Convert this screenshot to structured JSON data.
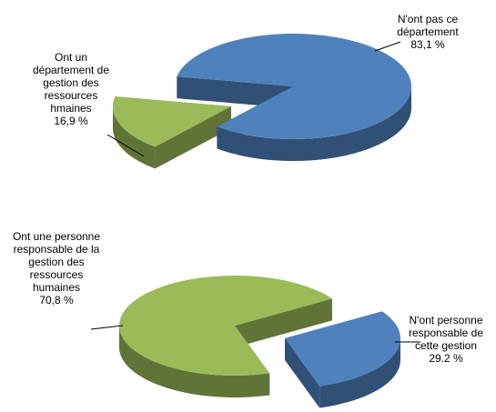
{
  "chart_data": [
    {
      "type": "pie",
      "categories": [
        "Ont un département de gestion des ressources hmaines",
        "N'ont pas ce département"
      ],
      "values": [
        16.9,
        83.1
      ],
      "value_labels": [
        "16,9 %",
        "83,1 %"
      ],
      "colors": [
        "#9bbb59",
        "#4f81bd"
      ]
    },
    {
      "type": "pie",
      "categories": [
        "Ont une personne responsable de la gestion des ressources humaines",
        "N'ont personne responsable de cette gestion"
      ],
      "values": [
        70.8,
        29.2
      ],
      "value_labels": [
        "70,8 %",
        "29.2 %"
      ],
      "colors": [
        "#9bbb59",
        "#4f81bd"
      ]
    }
  ]
}
